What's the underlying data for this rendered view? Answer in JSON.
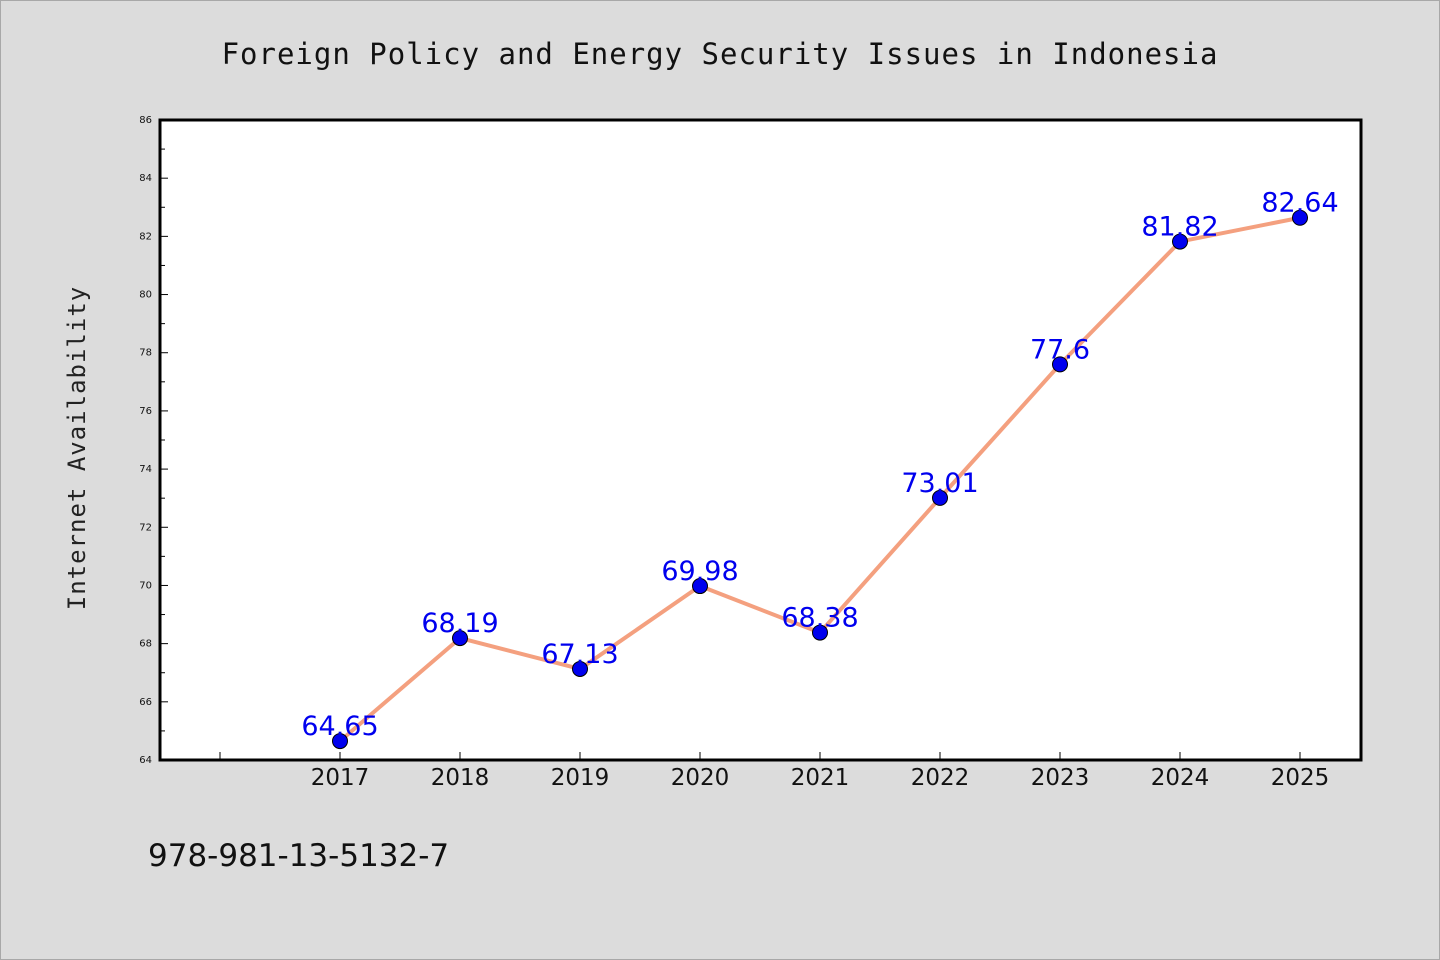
{
  "chart_data": {
    "type": "line",
    "title": "Foreign Policy and Energy Security Issues in Indonesia",
    "xlabel": "",
    "ylabel": "Internet Availability",
    "categories": [
      "2017",
      "2018",
      "2019",
      "2020",
      "2021",
      "2022",
      "2023",
      "2024",
      "2025"
    ],
    "series": [
      {
        "values": [
          64.65,
          68.19,
          67.13,
          69.98,
          68.38,
          73.01,
          77.6,
          81.82,
          82.64
        ],
        "data_labels": [
          "64.65",
          "68.19",
          "67.13",
          "69.98",
          "68.38",
          "73.01",
          "77.6",
          "81.82",
          "82.64"
        ]
      }
    ],
    "ylim": [
      64,
      86
    ],
    "yticks": [
      "64",
      "66",
      "68",
      "70",
      "72",
      "74",
      "76",
      "78",
      "80",
      "82",
      "84",
      "86"
    ],
    "grid": false,
    "line_color": "#f4a07f",
    "marker_color": "#0000ee",
    "label_color": "#0000ee"
  },
  "footer_text": "978-981-13-5132-7"
}
